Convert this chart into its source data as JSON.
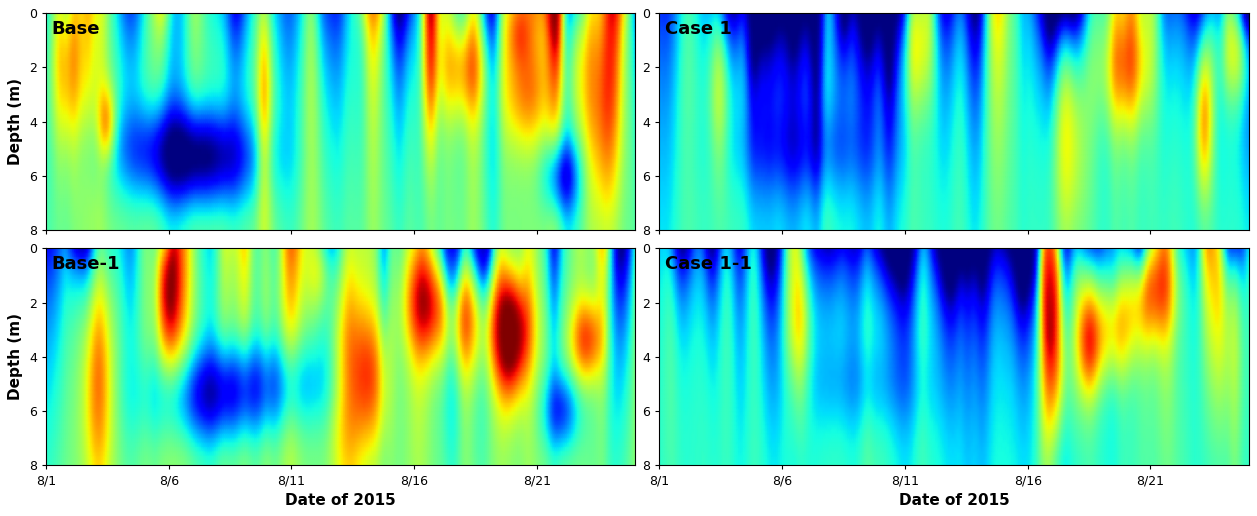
{
  "titles": [
    "Base",
    "Case 1",
    "Base-1",
    "Case 1-1"
  ],
  "xlabel": "Date of 2015",
  "ylabel": "Depth (m)",
  "xtick_labels": [
    "8/1",
    "8/6",
    "8/11",
    "8/16",
    "8/21"
  ],
  "ytick_labels": [
    "0",
    "2",
    "4",
    "6",
    "8"
  ],
  "colormap": "jet",
  "figsize": [
    12.57,
    5.16
  ],
  "dpi": 100,
  "background_color": "#ffffff",
  "title_fontsize": 13,
  "label_fontsize": 11
}
